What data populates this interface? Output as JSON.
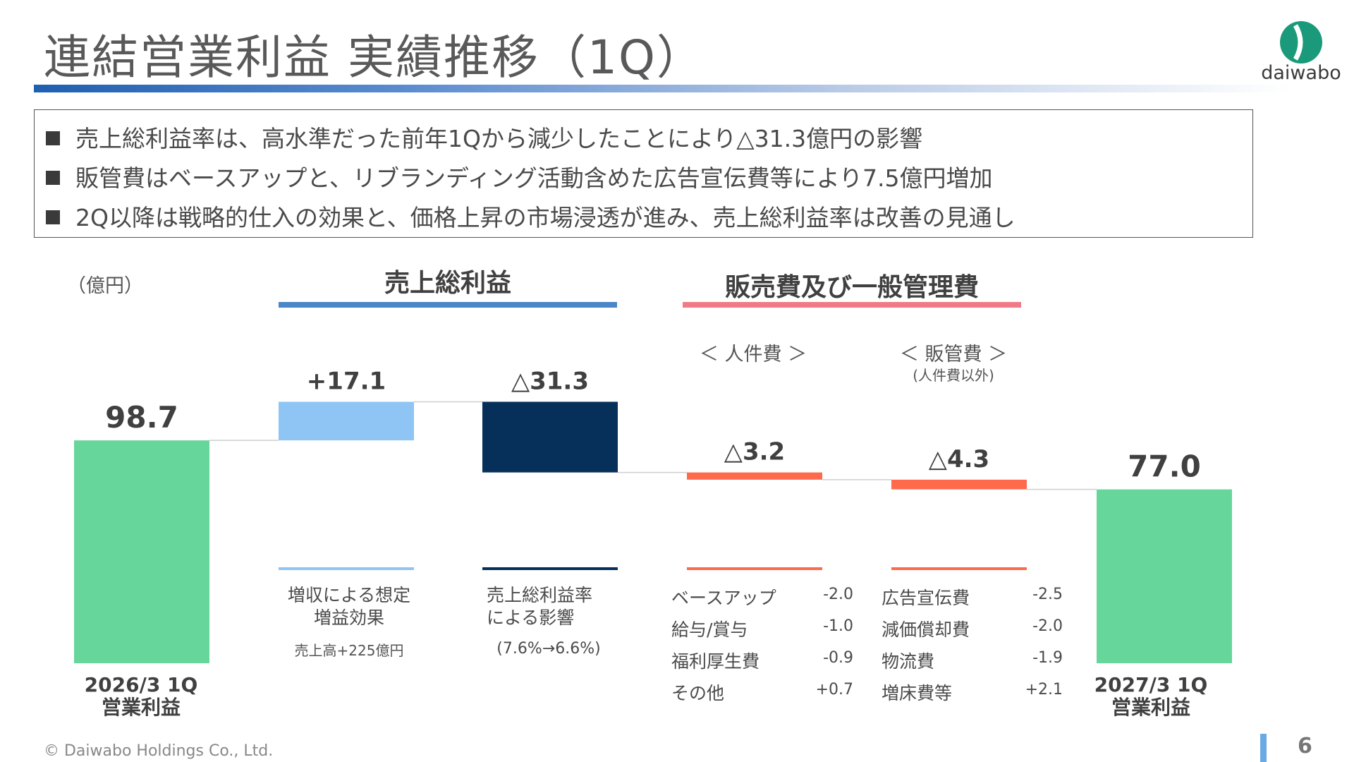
{
  "title": "連結営業利益 実績推移（1Q）",
  "logo": {
    "text": "daiwabo",
    "color": "#1a9a7a"
  },
  "summary": [
    "売上総利益率は、高水準だった前年1Qから減少したことにより△31.3億円の影響",
    "販管費はベースアップと、リブランディング活動含めた広告宣伝費等により7.5億円増加",
    "2Q以降は戦略的仕入の効果と、価格上昇の市場浸透が進み、売上総利益率は改善の見通し"
  ],
  "unit_label": "（億円）",
  "section_gross": {
    "title": "売上総利益",
    "color": "#4a86c8"
  },
  "section_sga": {
    "title": "販売費及び一般管理費",
    "color": "#f07b86"
  },
  "sga_personnel_header": "＜ 人件費 ＞",
  "sga_admin_header": "＜ 販管費 ＞",
  "sga_admin_subheader": "(人件費以外)",
  "chart_data": {
    "type": "bar",
    "subtype": "waterfall",
    "unit": "億円",
    "bars": [
      {
        "label": "98.7",
        "kind": "total",
        "start": 0,
        "end": 98.7,
        "color": "#66d69a"
      },
      {
        "label": "+17.1",
        "kind": "change",
        "start": 98.7,
        "end": 115.8,
        "color": "#8ec5f5"
      },
      {
        "label": "△31.3",
        "kind": "change",
        "start": 115.8,
        "end": 84.5,
        "color": "#06305a"
      },
      {
        "label": "△3.2",
        "kind": "change",
        "start": 84.5,
        "end": 81.3,
        "color": "#ff6a4d"
      },
      {
        "label": "△4.3",
        "kind": "change",
        "start": 81.3,
        "end": 77.0,
        "color": "#ff6a4d"
      },
      {
        "label": "77.0",
        "kind": "total",
        "start": 0,
        "end": 77.0,
        "color": "#66d69a"
      }
    ]
  },
  "categories": {
    "start": [
      "2026/3 1Q",
      "営業利益"
    ],
    "revenue": [
      "増収による想定",
      "増益効果"
    ],
    "revenue_note": "売上高+225億円",
    "margin": [
      "売上総利益率",
      "による影響"
    ],
    "margin_note": "(7.6%→6.6%)",
    "end": [
      "2027/3 1Q",
      "営業利益"
    ]
  },
  "personnel_breakdown": [
    {
      "item": "ベースアップ",
      "value": "-2.0"
    },
    {
      "item": "給与/賞与",
      "value": "-1.0"
    },
    {
      "item": "福利厚生費",
      "value": "-0.9"
    },
    {
      "item": "その他",
      "value": "+0.7"
    }
  ],
  "admin_breakdown": [
    {
      "item": "広告宣伝費",
      "value": "-2.5"
    },
    {
      "item": "減価償却費",
      "value": "-2.0"
    },
    {
      "item": "物流費",
      "value": "-1.9"
    },
    {
      "item": "増床費等",
      "value": "+2.1"
    }
  ],
  "footer": {
    "copyright": "© Daiwabo Holdings Co., Ltd.",
    "page": "6"
  }
}
